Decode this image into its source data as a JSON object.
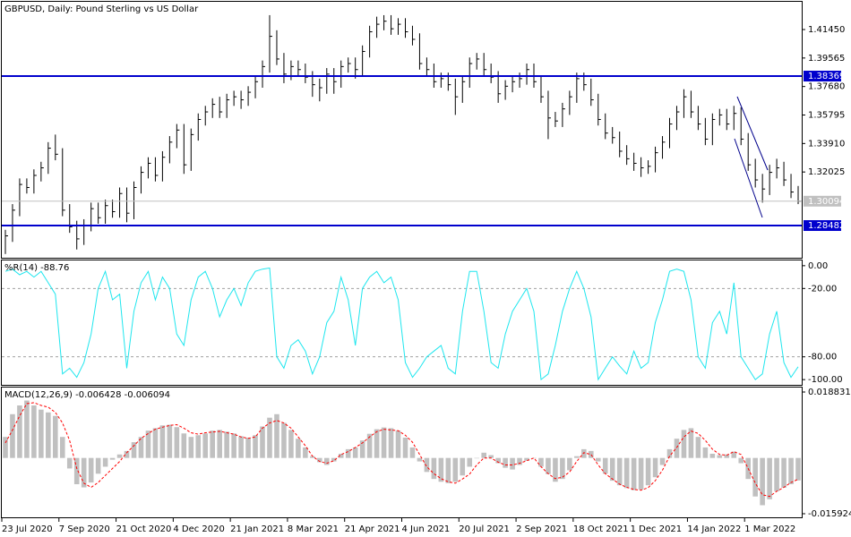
{
  "chart_data": [
    {
      "type": "ohlc",
      "title": "GBPUSD, Daily:  Pound Sterling vs US Dollar",
      "color": "#000000",
      "ylim": [
        1.26351,
        1.43285
      ],
      "yticks": [
        {
          "value": 1.4145,
          "label": "1.41450"
        },
        1.39565,
        {
          "value": 1.3768,
          "label": "1.37680"
        },
        1.35795,
        {
          "value": 1.3391,
          "label": "1.33910"
        },
        1.32025
      ],
      "levels": [
        {
          "value": 1.38369,
          "color": "#0000cd"
        },
        {
          "value": 1.28482,
          "color": "#0000cd"
        }
      ],
      "last": {
        "value": 1.30094,
        "color": "#c0c0c0"
      },
      "high": [
        1.282,
        1.299,
        1.316,
        1.316,
        1.322,
        1.327,
        1.34,
        1.345,
        1.336,
        1.299,
        1.288,
        1.289,
        1.3,
        1.3,
        1.302,
        1.302,
        1.31,
        1.31,
        1.314,
        1.324,
        1.33,
        1.33,
        1.334,
        1.344,
        1.352,
        1.352,
        1.349,
        1.359,
        1.364,
        1.369,
        1.37,
        1.372,
        1.374,
        1.374,
        1.377,
        1.384,
        1.394,
        1.424,
        1.414,
        1.399,
        1.394,
        1.394,
        1.392,
        1.387,
        1.382,
        1.389,
        1.389,
        1.394,
        1.396,
        1.396,
        1.404,
        1.417,
        1.423,
        1.424,
        1.424,
        1.422,
        1.422,
        1.417,
        1.412,
        1.396,
        1.392,
        1.386,
        1.386,
        1.382,
        1.384,
        1.396,
        1.399,
        1.399,
        1.392,
        1.387,
        1.381,
        1.384,
        1.386,
        1.392,
        1.392,
        1.384,
        1.374,
        1.36,
        1.366,
        1.374,
        1.386,
        1.386,
        1.382,
        1.372,
        1.359,
        1.35,
        1.347,
        1.338,
        1.333,
        1.33,
        1.328,
        1.337,
        1.344,
        1.356,
        1.364,
        1.375,
        1.374,
        1.364,
        1.356,
        1.359,
        1.362,
        1.362,
        1.364,
        1.363,
        1.346,
        1.329,
        1.319,
        1.325,
        1.329,
        1.327,
        1.319,
        1.311
      ],
      "low": [
        1.266,
        1.274,
        1.291,
        1.306,
        1.306,
        1.314,
        1.319,
        1.328,
        1.291,
        1.28,
        1.269,
        1.272,
        1.281,
        1.286,
        1.286,
        1.29,
        1.29,
        1.287,
        1.289,
        1.306,
        1.316,
        1.314,
        1.314,
        1.326,
        1.336,
        1.319,
        1.321,
        1.341,
        1.351,
        1.356,
        1.356,
        1.356,
        1.364,
        1.362,
        1.364,
        1.369,
        1.376,
        1.386,
        1.391,
        1.379,
        1.381,
        1.384,
        1.379,
        1.37,
        1.367,
        1.372,
        1.372,
        1.376,
        1.386,
        1.382,
        1.384,
        1.396,
        1.409,
        1.414,
        1.411,
        1.411,
        1.409,
        1.404,
        1.388,
        1.384,
        1.376,
        1.376,
        1.374,
        1.358,
        1.366,
        1.376,
        1.388,
        1.384,
        1.379,
        1.366,
        1.368,
        1.373,
        1.376,
        1.378,
        1.376,
        1.366,
        1.342,
        1.35,
        1.35,
        1.358,
        1.366,
        1.374,
        1.364,
        1.351,
        1.342,
        1.339,
        1.33,
        1.325,
        1.321,
        1.317,
        1.319,
        1.32,
        1.329,
        1.336,
        1.348,
        1.356,
        1.356,
        1.348,
        1.338,
        1.338,
        1.351,
        1.348,
        1.348,
        1.338,
        1.321,
        1.31,
        1.3,
        1.305,
        1.316,
        1.311,
        1.303,
        1.299
      ],
      "close": [
        1.278,
        1.295,
        1.312,
        1.31,
        1.318,
        1.323,
        1.336,
        1.332,
        1.295,
        1.284,
        1.276,
        1.285,
        1.296,
        1.29,
        1.298,
        1.294,
        1.306,
        1.293,
        1.31,
        1.32,
        1.326,
        1.318,
        1.33,
        1.34,
        1.348,
        1.325,
        1.345,
        1.355,
        1.36,
        1.365,
        1.36,
        1.368,
        1.37,
        1.368,
        1.373,
        1.38,
        1.39,
        1.41,
        1.395,
        1.385,
        1.39,
        1.388,
        1.383,
        1.378,
        1.376,
        1.385,
        1.38,
        1.39,
        1.392,
        1.388,
        1.4,
        1.413,
        1.418,
        1.42,
        1.415,
        1.418,
        1.413,
        1.408,
        1.392,
        1.388,
        1.38,
        1.382,
        1.378,
        1.37,
        1.38,
        1.392,
        1.395,
        1.388,
        1.383,
        1.372,
        1.377,
        1.38,
        1.382,
        1.388,
        1.38,
        1.37,
        1.356,
        1.354,
        1.362,
        1.37,
        1.382,
        1.378,
        1.368,
        1.355,
        1.346,
        1.343,
        1.334,
        1.329,
        1.326,
        1.323,
        1.324,
        1.333,
        1.34,
        1.352,
        1.36,
        1.37,
        1.36,
        1.352,
        1.342,
        1.355,
        1.358,
        1.352,
        1.359,
        1.342,
        1.325,
        1.315,
        1.309,
        1.32,
        1.323,
        1.315,
        1.307,
        1.30094
      ]
    },
    {
      "type": "line",
      "title": "%R(14) -88.76",
      "color": "#1ee6ee",
      "ylim": [
        -104.6,
        4.6
      ],
      "yticks": [
        {
          "value": 0,
          "label": "0.00"
        },
        {
          "value": -20,
          "label": "-20.00"
        },
        {
          "value": -80,
          "label": "-80.00"
        },
        {
          "value": -100,
          "label": "-100.00"
        }
      ],
      "levels": [
        -20,
        -80
      ],
      "values": [
        -5,
        -3,
        -8,
        -5,
        -10,
        -5,
        -15,
        -25,
        -95,
        -90,
        -98,
        -85,
        -60,
        -20,
        -5,
        -30,
        -25,
        -90,
        -40,
        -15,
        -5,
        -30,
        -10,
        -20,
        -60,
        -70,
        -30,
        -10,
        -5,
        -20,
        -45,
        -30,
        -20,
        -35,
        -15,
        -5,
        -3,
        -2,
        -80,
        -90,
        -70,
        -65,
        -75,
        -95,
        -80,
        -50,
        -40,
        -10,
        -30,
        -70,
        -20,
        -10,
        -5,
        -15,
        -10,
        -30,
        -85,
        -98,
        -90,
        -80,
        -75,
        -70,
        -90,
        -95,
        -40,
        -5,
        -5,
        -40,
        -85,
        -90,
        -60,
        -40,
        -30,
        -20,
        -40,
        -100,
        -95,
        -70,
        -40,
        -20,
        -5,
        -20,
        -45,
        -100,
        -90,
        -80,
        -88,
        -95,
        -75,
        -90,
        -85,
        -50,
        -30,
        -5,
        -3,
        -5,
        -30,
        -80,
        -90,
        -50,
        -40,
        -60,
        -15,
        -80,
        -90,
        -100,
        -95,
        -60,
        -40,
        -85,
        -98,
        -88.76
      ]
    },
    {
      "type": "macd",
      "title": "MACD(12,26,9) -0.006428 -0.006094",
      "ylim": [
        -0.01695,
        0.02011
      ],
      "yticks": [
        0.018831,
        -0.015924
      ],
      "categories": [
        "23 Jul 2020",
        null,
        null,
        null,
        null,
        null,
        null,
        null,
        "7 Sep 2020",
        null,
        null,
        null,
        null,
        null,
        null,
        null,
        "21 Oct 2020",
        null,
        null,
        null,
        null,
        null,
        null,
        null,
        "4 Dec 2020",
        null,
        null,
        null,
        null,
        null,
        null,
        null,
        "21 Jan 2021",
        null,
        null,
        null,
        null,
        null,
        null,
        null,
        "8 Mar 2021",
        null,
        null,
        null,
        null,
        null,
        null,
        null,
        "21 Apr 2021",
        null,
        null,
        null,
        null,
        null,
        null,
        null,
        "4 Jun 2021",
        null,
        null,
        null,
        null,
        null,
        null,
        null,
        "20 Jul 2021",
        null,
        null,
        null,
        null,
        null,
        null,
        null,
        "2 Sep 2021",
        null,
        null,
        null,
        null,
        null,
        null,
        null,
        "18 Oct 2021",
        null,
        null,
        null,
        null,
        null,
        null,
        null,
        "1 Dec 2021",
        null,
        null,
        null,
        null,
        null,
        null,
        null,
        "14 Jan 2022",
        null,
        null,
        null,
        null,
        null,
        null,
        null,
        "1 Mar 2022",
        null,
        null,
        null,
        null,
        null,
        null,
        null
      ],
      "histogram": {
        "color": "#c0c0c0",
        "values": [
          0.006,
          0.0125,
          0.015,
          0.0164,
          0.015,
          0.0138,
          0.013,
          0.012,
          0.006,
          -0.003,
          -0.0075,
          -0.0084,
          -0.007,
          -0.0045,
          -0.0025,
          -0.0005,
          0.001,
          0.002,
          0.0045,
          0.006,
          0.0078,
          0.0085,
          0.0093,
          0.0095,
          0.0088,
          0.007,
          0.006,
          0.0065,
          0.007,
          0.0078,
          0.008,
          0.0075,
          0.007,
          0.0062,
          0.0058,
          0.0065,
          0.009,
          0.0115,
          0.0125,
          0.01,
          0.008,
          0.0055,
          0.003,
          0.0005,
          -0.0012,
          -0.002,
          -0.001,
          0.0012,
          0.0025,
          0.003,
          0.005,
          0.0069,
          0.0082,
          0.0087,
          0.0085,
          0.0078,
          0.0058,
          0.003,
          -0.001,
          -0.004,
          -0.006,
          -0.0068,
          -0.0072,
          -0.0068,
          -0.005,
          -0.0025,
          0.0,
          0.0015,
          0.0008,
          -0.0015,
          -0.0028,
          -0.0033,
          -0.002,
          -0.0008,
          0.0,
          -0.0025,
          -0.0046,
          -0.0068,
          -0.006,
          -0.0035,
          0.0005,
          0.0025,
          0.002,
          -0.001,
          -0.0045,
          -0.0065,
          -0.0078,
          -0.0086,
          -0.0092,
          -0.009,
          -0.0078,
          -0.0055,
          -0.002,
          0.0025,
          0.0055,
          0.008,
          0.0085,
          0.006,
          0.003,
          0.0012,
          0.0008,
          0.001,
          0.0018,
          -0.0015,
          -0.006,
          -0.011,
          -0.0135,
          -0.0118,
          -0.0095,
          -0.0085,
          -0.0075,
          -0.006428
        ]
      },
      "signal": {
        "color": "#ff0000",
        "values": [
          0.0043,
          0.008,
          0.012,
          0.0155,
          0.0158,
          0.015,
          0.0145,
          0.013,
          0.01,
          0.005,
          -0.003,
          -0.0072,
          -0.0084,
          -0.007,
          -0.005,
          -0.003,
          -0.001,
          0.0015,
          0.0035,
          0.0056,
          0.007,
          0.0082,
          0.0088,
          0.0093,
          0.0095,
          0.0085,
          0.0072,
          0.0068,
          0.0072,
          0.0074,
          0.0076,
          0.0072,
          0.0068,
          0.006,
          0.0056,
          0.006,
          0.0085,
          0.01,
          0.0107,
          0.01,
          0.0085,
          0.006,
          0.0035,
          0.0005,
          -0.001,
          -0.0015,
          -0.0008,
          0.001,
          0.0018,
          0.003,
          0.0043,
          0.006,
          0.0075,
          0.0082,
          0.008,
          0.0078,
          0.0065,
          0.0045,
          0.001,
          -0.0025,
          -0.0045,
          -0.0059,
          -0.0068,
          -0.0072,
          -0.006,
          -0.0046,
          -0.002,
          0.0,
          0.0,
          -0.0012,
          -0.002,
          -0.002,
          -0.0015,
          -0.0008,
          0.0,
          -0.0025,
          -0.0045,
          -0.0059,
          -0.0055,
          -0.004,
          -0.001,
          0.0015,
          0.001,
          -0.002,
          -0.0045,
          -0.006,
          -0.0075,
          -0.0084,
          -0.009,
          -0.0092,
          -0.0085,
          -0.0065,
          -0.0035,
          0.0005,
          0.003,
          0.006,
          0.0077,
          0.007,
          0.005,
          0.0025,
          0.001,
          0.0008,
          0.0018,
          0.001,
          -0.003,
          -0.0072,
          -0.0105,
          -0.011,
          -0.0095,
          -0.0084,
          -0.007,
          -0.006094
        ]
      }
    }
  ]
}
